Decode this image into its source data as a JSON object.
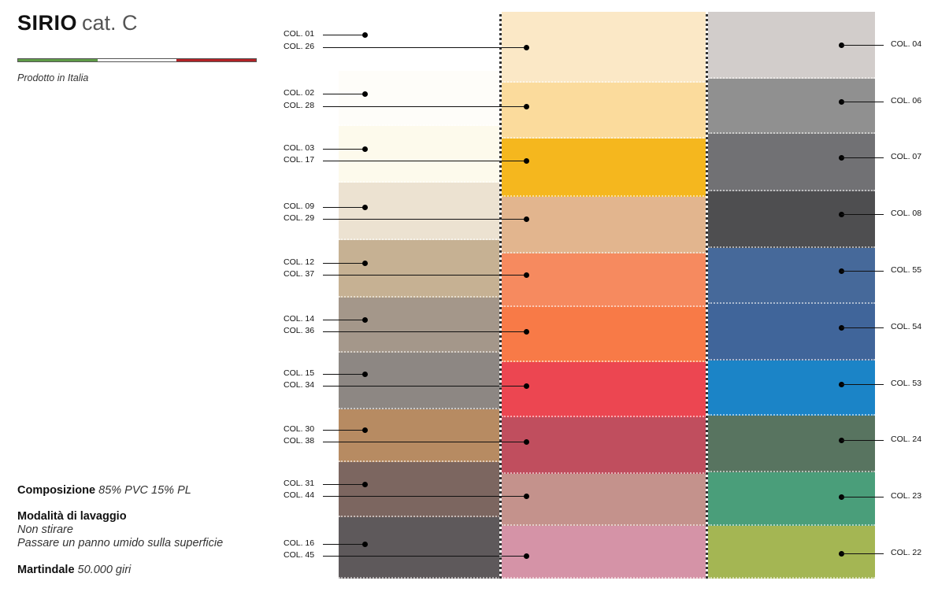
{
  "header": {
    "title_bold": "SIRIO",
    "title_light": "cat. C",
    "made_in": "Prodotto in Italia",
    "flag_colors": [
      "#5f9b48",
      "#ffffff",
      "#b22226"
    ]
  },
  "info": {
    "composition_label": "Composizione",
    "composition_value": "85% PVC 15% PL",
    "washing_label": "Modalità di lavaggio",
    "washing_line1": "Non stirare",
    "washing_line2": "Passare un panno umido sulla superficie",
    "martindale_label": "Martindale",
    "martindale_value": "50.000 giri"
  },
  "swatches": {
    "left": [
      {
        "label": "COL. 01",
        "color": "#ffffff"
      },
      {
        "label": "COL. 02",
        "color": "#fefdf9"
      },
      {
        "label": "COL. 03",
        "color": "#fdfaec"
      },
      {
        "label": "COL. 09",
        "color": "#ece2d1"
      },
      {
        "label": "COL. 12",
        "color": "#c6b193"
      },
      {
        "label": "COL. 14",
        "color": "#a4978a"
      },
      {
        "label": "COL. 15",
        "color": "#8d8783"
      },
      {
        "label": "COL. 30",
        "color": "#b78b62"
      },
      {
        "label": "COL. 31",
        "color": "#7c6660"
      },
      {
        "label": "COL. 16",
        "color": "#5e595b"
      }
    ],
    "middle": [
      {
        "label": "COL. 26",
        "color": "#fbe8c6"
      },
      {
        "label": "COL. 28",
        "color": "#fbdb9c"
      },
      {
        "label": "COL. 17",
        "color": "#f5b71e"
      },
      {
        "label": "COL. 29",
        "color": "#e2b58e"
      },
      {
        "label": "COL. 37",
        "color": "#f68a5f"
      },
      {
        "label": "COL. 36",
        "color": "#f87a47"
      },
      {
        "label": "COL. 34",
        "color": "#ec4651"
      },
      {
        "label": "COL. 38",
        "color": "#c04e5e"
      },
      {
        "label": "COL. 44",
        "color": "#c4928c"
      },
      {
        "label": "COL. 45",
        "color": "#d593a7"
      }
    ],
    "right": [
      {
        "label": "COL. 04",
        "color": "#d2cdcb"
      },
      {
        "label": "COL. 06",
        "color": "#909090"
      },
      {
        "label": "COL. 07",
        "color": "#717174"
      },
      {
        "label": "COL. 08",
        "color": "#4e4e50"
      },
      {
        "label": "COL. 55",
        "color": "#46699a"
      },
      {
        "label": "COL. 54",
        "color": "#40659a"
      },
      {
        "label": "COL. 53",
        "color": "#1b84c7"
      },
      {
        "label": "COL. 24",
        "color": "#587460"
      },
      {
        "label": "COL. 23",
        "color": "#4a9e7a"
      },
      {
        "label": "COL. 22",
        "color": "#a4b653"
      }
    ]
  }
}
